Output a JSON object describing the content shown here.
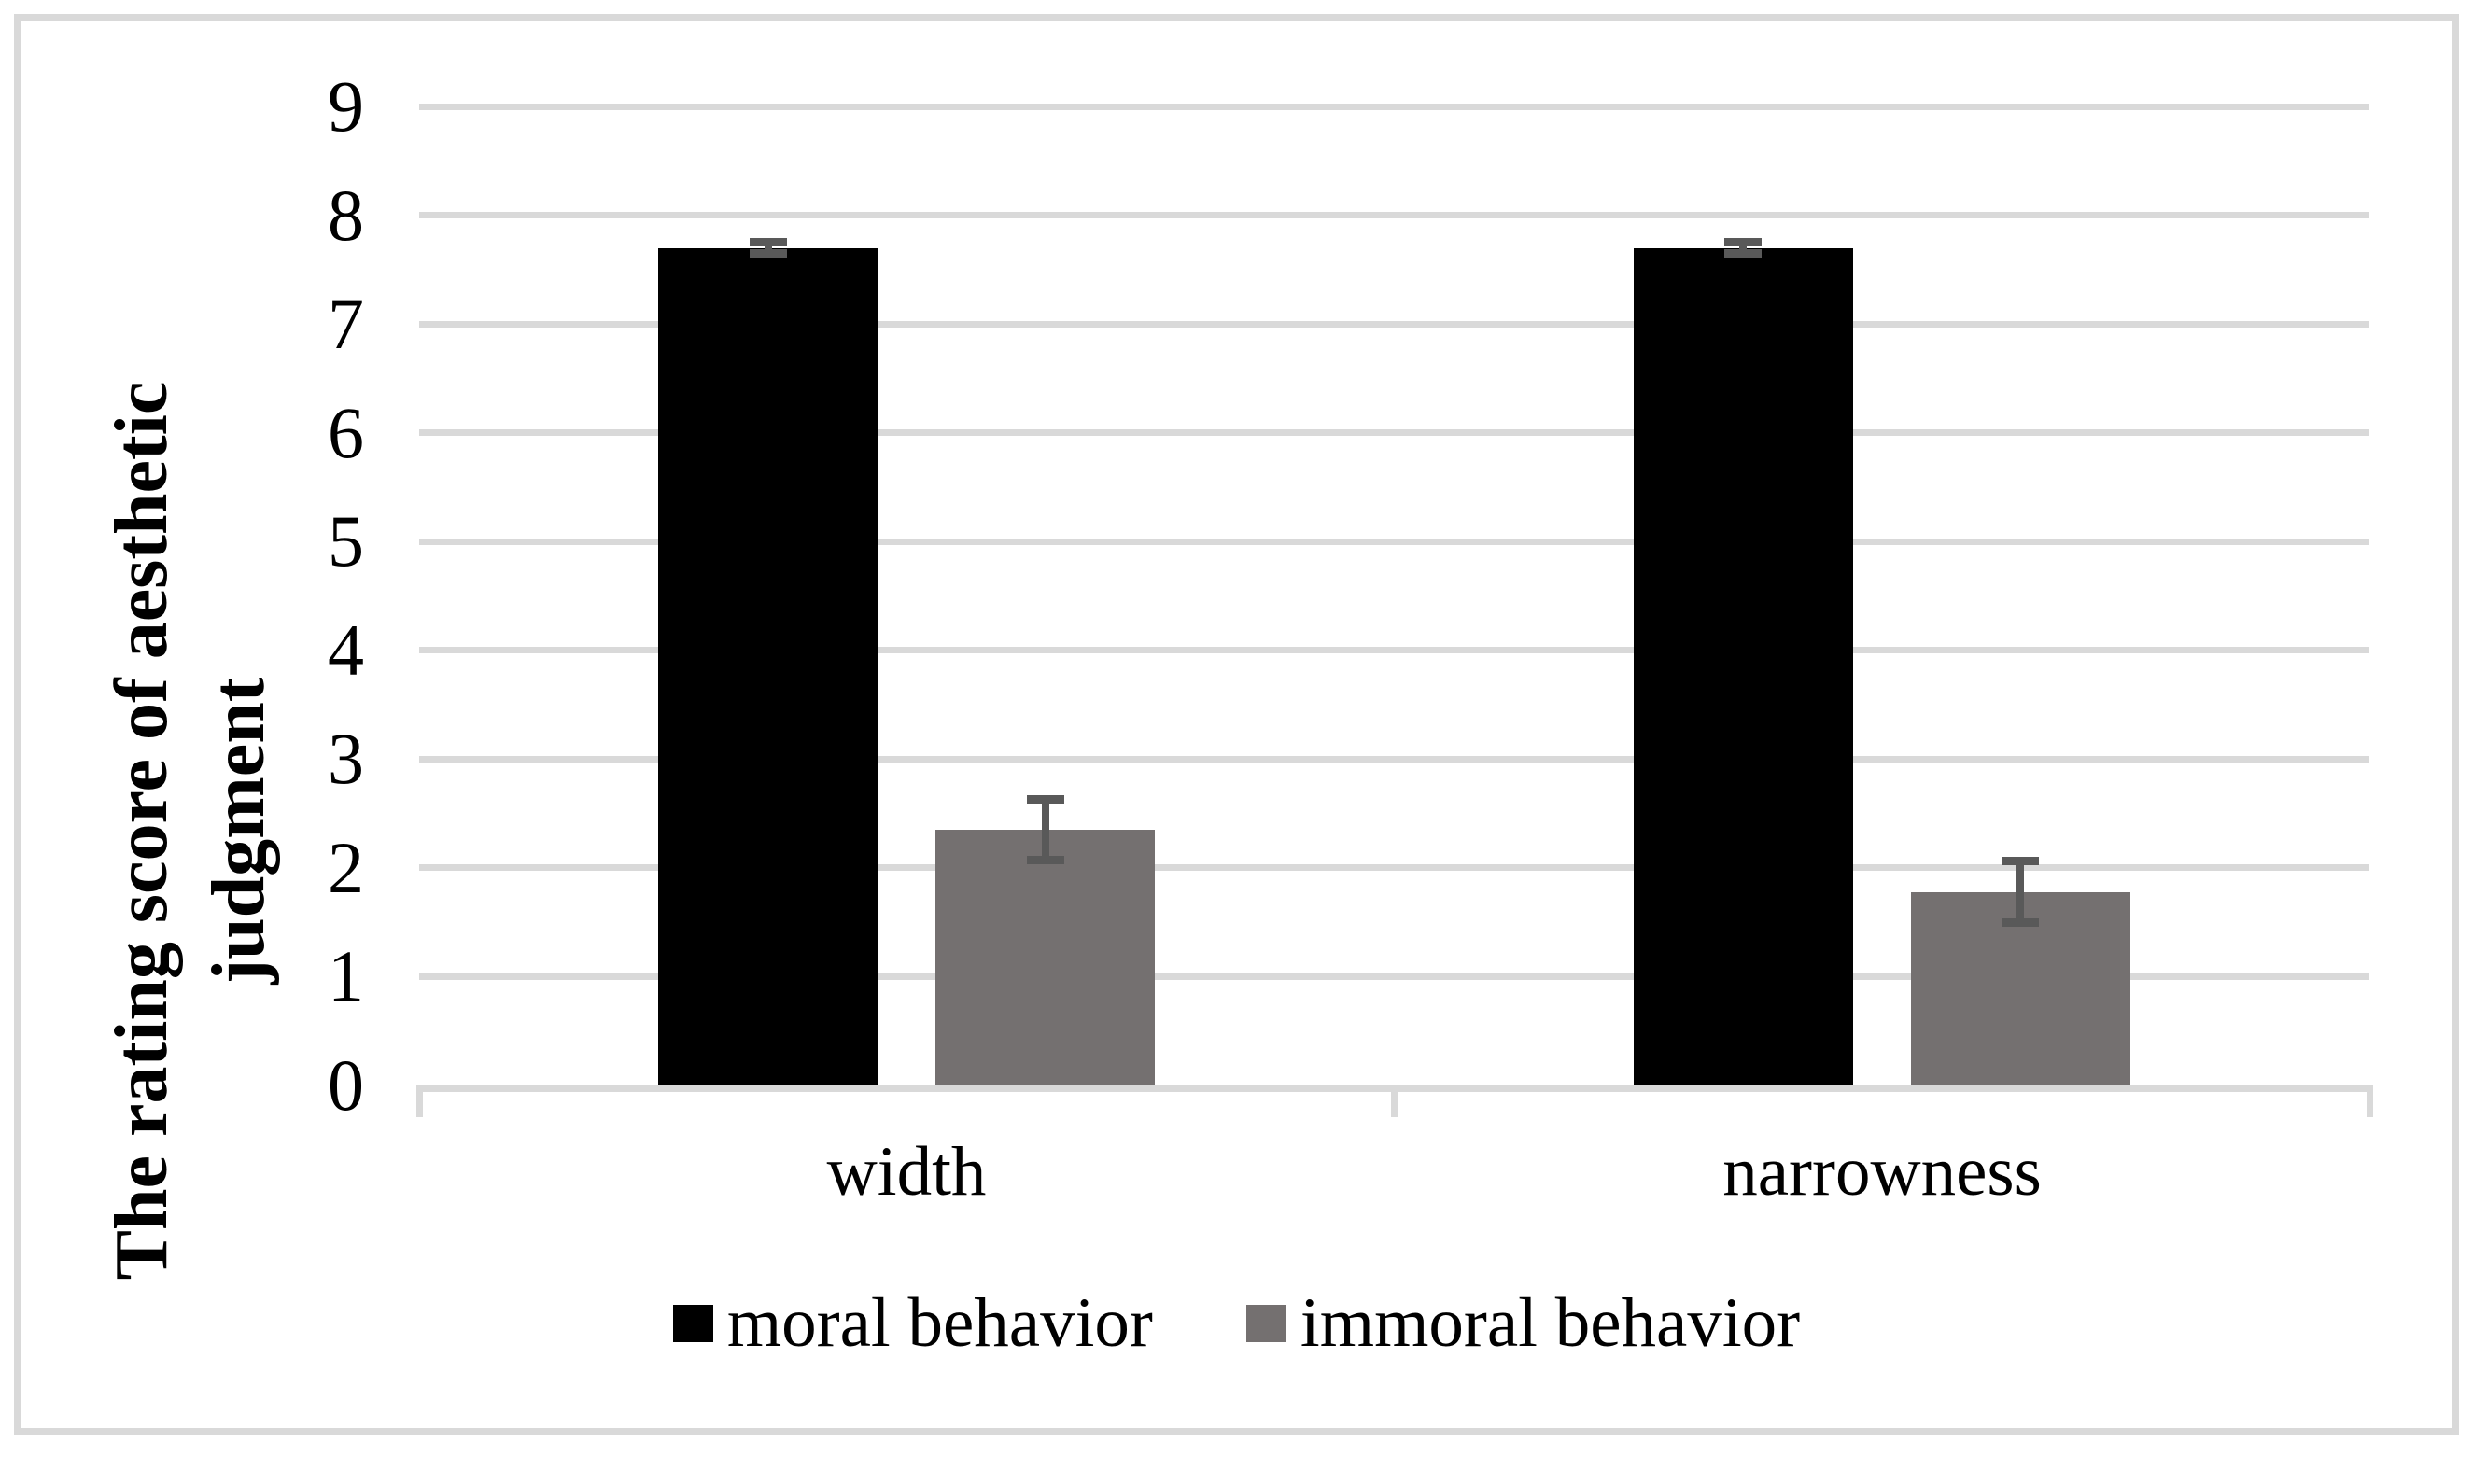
{
  "figure": {
    "background": "#ffffff",
    "border_color": "#d9d9d9"
  },
  "chart_data": {
    "type": "bar",
    "title": "",
    "categories": [
      "width",
      "narrowness"
    ],
    "series": [
      {
        "name": "moral behavior",
        "color": "#000000",
        "values": [
          7.7,
          7.7
        ],
        "errors": [
          0.05,
          0.05
        ]
      },
      {
        "name": "immoral behavior",
        "color": "#747070",
        "values": [
          2.35,
          1.78
        ],
        "errors": [
          0.28,
          0.28
        ]
      }
    ],
    "xlabel": "",
    "ylabel": "The rating score of aesthetic judgment",
    "ylabel_lines": [
      "The rating score of aesthetic",
      "judgment"
    ],
    "ylim": [
      0,
      9
    ],
    "ytick_interval": 1,
    "yticks": [
      "0",
      "1",
      "2",
      "3",
      "4",
      "5",
      "6",
      "7",
      "8",
      "9"
    ],
    "grid": "horizontal",
    "gridline_color": "#d9d9d9",
    "axis_line_color": "#d9d9d9",
    "error_bar_color": "#595959",
    "legend_position": "bottom"
  }
}
